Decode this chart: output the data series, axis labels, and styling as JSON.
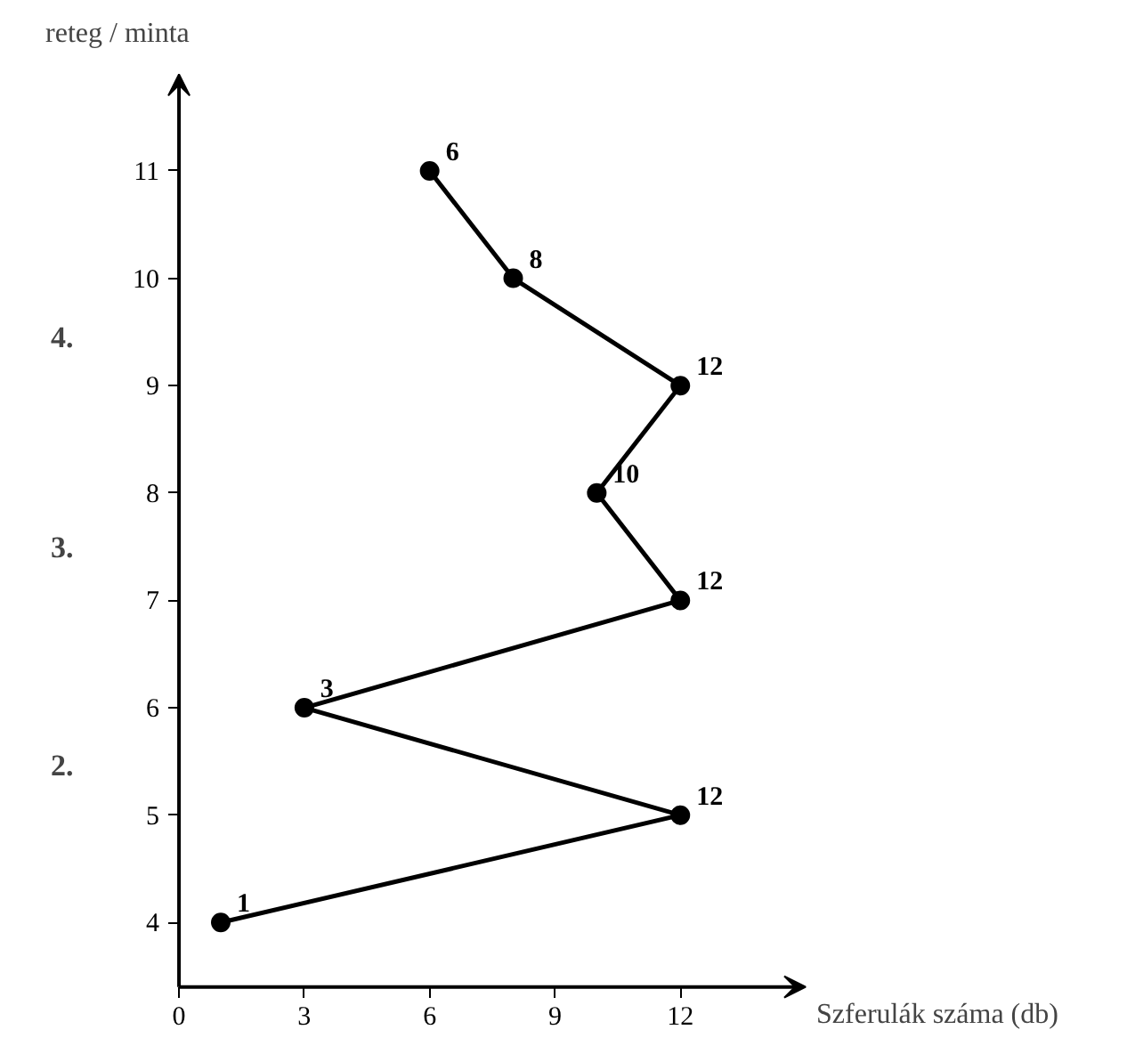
{
  "chart_data": {
    "type": "line",
    "orientation": "horizontal",
    "xlabel": "Szferulák száma (db)",
    "ylabel": "reteg / minta",
    "categories": [
      "11",
      "10",
      "9",
      "8",
      "7",
      "6",
      "5",
      "4"
    ],
    "series": [
      {
        "color": "#000000",
        "values": [
          6,
          8,
          12,
          10,
          12,
          3,
          12,
          1
        ]
      }
    ],
    "xlim": [
      0,
      15
    ],
    "xticks": [
      0,
      3,
      6,
      9,
      12
    ],
    "data_labels": true,
    "marker": "circle",
    "line_style": "solid",
    "grid": false,
    "annotations": [
      "4.",
      "3.",
      "2."
    ]
  }
}
